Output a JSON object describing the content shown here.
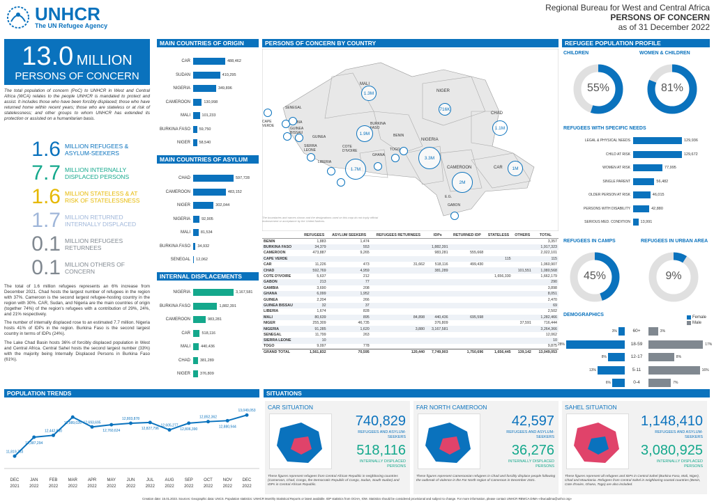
{
  "header": {
    "logo_text": "UNHCR",
    "logo_sub": "The UN Refugee Agency",
    "region": "Regional Bureau for West and Central Africa",
    "title": "PERSONS OF CONCERN",
    "date": "as of 31 December 2022"
  },
  "hero": {
    "number": "13.0",
    "unit": "MILLION",
    "label": "PERSONS OF CONCERN",
    "desc": "The total population of concern (PoC) to UNHCR in West and Central Africa (WCA) relates to the people UNHCR is mandated to protect and assist. It includes those who have been forcibly displaced; those who have returned home within recent years; those who are stateless or at risk of statelessness; and other groups to whom UNHCR has extended its protection or assisted on a humanitarian basis."
  },
  "stats": [
    {
      "n": "1.6",
      "t": "MILLION REFUGEES & ASYLUM-SEEKERS",
      "cls": "blue"
    },
    {
      "n": "7.7",
      "t": "MILLION INTERNALLY DISPLACED PERSONS",
      "cls": "teal"
    },
    {
      "n": "1.6",
      "t": "MILLION STATELESS & AT RISK OF STATELESSNESS",
      "cls": "yel"
    },
    {
      "n": "1.7",
      "t": "MILLION RETURNED INTERNALLY DISPLACED",
      "cls": "lb"
    },
    {
      "n": "0.1",
      "t": "MILLION REFUGEES RETURNEES",
      "cls": "grey"
    },
    {
      "n": "0.1",
      "t": "MILLION OTHERS OF CONCERN",
      "cls": "grey"
    }
  ],
  "paras": [
    "The total of 1.6 million refugees represents an 6% increase from December 2021. Chad hosts the largest number of refugees in the region with 37%. Cameroon is the second largest refugee-hosting country in the region with 30%. CAR, Sudan, and Nigeria are the main countries of origin (together 74%) of the region's refugees with a contribution of 29%, 24%, and 21% respectively.",
    "The number of internally displaced rose to an estimated 7.7 million. Nigeria hosts 41% of IDPs in the region. Burkina Faso is the second largest country in terms of IDPs (24%).",
    "The Lake Chad Basin hosts 36% of forcibly displaced population in West and Central Africa. Central Sahel hosts the second largest number (33%) with the majority being Internally Displaced Persons in Burkina Faso (61%)."
  ],
  "origin": {
    "title": "MAIN COUNTRIES OF ORIGIN",
    "rows": [
      {
        "l": "CAR",
        "v": 488462,
        "t": "488,462"
      },
      {
        "l": "SUDAN",
        "v": 410295,
        "t": "410,295"
      },
      {
        "l": "NIGERIA",
        "v": 349896,
        "t": "349,896"
      },
      {
        "l": "CAMEROON",
        "v": 130998,
        "t": "130,998"
      },
      {
        "l": "MALI",
        "v": 101233,
        "t": "101,233"
      },
      {
        "l": "BURKINA FASO",
        "v": 59750,
        "t": "59,750"
      },
      {
        "l": "NIGER",
        "v": 58540,
        "t": "58,540"
      }
    ]
  },
  "asylum": {
    "title": "MAIN COUNTRIES OF ASYLUM",
    "rows": [
      {
        "l": "CHAD",
        "v": 597728,
        "t": "597,728"
      },
      {
        "l": "CAMEROON",
        "v": 483152,
        "t": "483,152"
      },
      {
        "l": "NIGER",
        "v": 302044,
        "t": "302,044"
      },
      {
        "l": "NIGERIA",
        "v": 92905,
        "t": "92,905"
      },
      {
        "l": "MALI",
        "v": 81534,
        "t": "81,534"
      },
      {
        "l": "BURKINA FASO",
        "v": 34932,
        "t": "34,932"
      },
      {
        "l": "SENEGAL",
        "v": 12062,
        "t": "12,062"
      }
    ]
  },
  "idp": {
    "title": "INTERNAL DISPLACEMENTS",
    "rows": [
      {
        "l": "NIGERIA",
        "v": 3167581,
        "t": "3,167,581"
      },
      {
        "l": "BURKINA FASO",
        "v": 1882391,
        "t": "1,882,391"
      },
      {
        "l": "CAMEROON",
        "v": 983281,
        "t": "983,281"
      },
      {
        "l": "CAR",
        "v": 518116,
        "t": "518,116"
      },
      {
        "l": "MALI",
        "v": 440436,
        "t": "440,436"
      },
      {
        "l": "CHAD",
        "v": 381289,
        "t": "381,289"
      },
      {
        "l": "NIGER",
        "v": 376809,
        "t": "376,809"
      }
    ]
  },
  "map": {
    "title": "PERSONS OF CONCERN BY COUNTRY",
    "disclaimer": "The boundaries and names shown and the designations used on this map do not imply official endorsement or acceptance by the United Nations.",
    "countries": [
      "MALI",
      "NIGER",
      "CHAD",
      "SENEGAL",
      "GAMBIA",
      "GUINEA BISSAU",
      "GUINEA",
      "SIERRA LEONE",
      "LIBERIA",
      "COTE D'IVOIRE",
      "BURKINA FASO",
      "GHANA",
      "TOGO",
      "BENIN",
      "NIGERIA",
      "CAMEROON",
      "CAR",
      "CAPE VERDE",
      "E.G.",
      "GABON"
    ],
    "bubbles": [
      "1.3M",
      "716K",
      "1.1M",
      "1.9M",
      "3.3M",
      "1.7M",
      "2M",
      "1M"
    ]
  },
  "table": {
    "headers": [
      "",
      "REFUGEES",
      "ASYLUM SEEKERS",
      "REFUGEES RETURNEES",
      "IDPs",
      "RETURNED IDP",
      "STATELESS",
      "OTHERS",
      "TOTAL"
    ],
    "rows": [
      [
        "BENIN",
        "1,883",
        "1,474",
        "",
        "",
        "",
        "",
        "",
        "3,357"
      ],
      [
        "BURKINA FASO",
        "34,379",
        "553",
        "",
        "1,882,391",
        "",
        "",
        "",
        "1,917,323"
      ],
      [
        "CAMEROON",
        "473,887",
        "9,265",
        "",
        "983,281",
        "555,668",
        "",
        "",
        "2,022,101"
      ],
      [
        "CAPE VERDE",
        "",
        "",
        "",
        "",
        "",
        "115",
        "",
        "115"
      ],
      [
        "CAR",
        "11,226",
        "473",
        "31,662",
        "518,116",
        "499,430",
        "",
        "",
        "1,060,907"
      ],
      [
        "CHAD",
        "592,769",
        "4,959",
        "",
        "381,289",
        "",
        "",
        "101,551",
        "1,080,568"
      ],
      [
        "COTE D'IVOIRE",
        "5,637",
        "212",
        "",
        "",
        "",
        "1,656,330",
        "",
        "1,662,179"
      ],
      [
        "GABON",
        "213",
        "77",
        "",
        "",
        "",
        "",
        "",
        "290"
      ],
      [
        "GAMBIA",
        "3,690",
        "208",
        "",
        "",
        "",
        "",
        "",
        "3,898"
      ],
      [
        "GHANA",
        "6,099",
        "1,952",
        "",
        "",
        "",
        "",
        "",
        "8,051"
      ],
      [
        "GUINEA",
        "2,204",
        "266",
        "",
        "",
        "",
        "",
        "",
        "2,470"
      ],
      [
        "GUINEA BISSAU",
        "32",
        "37",
        "",
        "",
        "",
        "",
        "",
        "69"
      ],
      [
        "LIBERIA",
        "1,674",
        "828",
        "",
        "",
        "",
        "",
        "",
        "2,502"
      ],
      [
        "MALI",
        "80,639",
        "895",
        "84,898",
        "440,436",
        "695,598",
        "",
        "",
        "1,282,466"
      ],
      [
        "NIGER",
        "255,309",
        "46,735",
        "",
        "376,809",
        "",
        "",
        "37,591",
        "716,444"
      ],
      [
        "NIGERIA",
        "91,285",
        "1,620",
        "3,880",
        "3,167,581",
        "",
        "",
        "",
        "3,264,366"
      ],
      [
        "SENEGAL",
        "11,799",
        "263",
        "",
        "",
        "",
        "",
        "",
        "12,062"
      ],
      [
        "SIERRA LEONE",
        "10",
        "",
        "",
        "",
        "",
        "",
        "",
        "10"
      ],
      [
        "TOGO",
        "9,097",
        "778",
        "",
        "",
        "",
        "",
        "",
        "9,875"
      ]
    ],
    "total": [
      "GRAND TOTAL",
      "1,561,832",
      "70,595",
      "120,440",
      "7,749,903",
      "1,750,696",
      "1,656,445",
      "139,142",
      "13,049,053"
    ]
  },
  "profile": {
    "title": "REFUGEE POPULATION PROFILE",
    "children_label": "CHILDREN",
    "children_value": "55%",
    "children_pct": 55,
    "wc_label": "WOMEN & CHILDREN",
    "wc_value": "81%",
    "wc_pct": 81
  },
  "needs": {
    "title": "REFUGEES WITH SPECIFIC NEEDS",
    "rows": [
      {
        "l": "LEGAL & PHYSICAL NEEDS",
        "v": 129936,
        "t": "129,936"
      },
      {
        "l": "CHILD AT RISK",
        "v": 129672,
        "t": "129,672"
      },
      {
        "l": "WOMEN AT RISK",
        "v": 77995,
        "t": "77,995"
      },
      {
        "l": "SINGLE PARENT",
        "v": 56482,
        "t": "56,482"
      },
      {
        "l": "OLDER PERSON AT RISK",
        "v": 46015,
        "t": "46,015"
      },
      {
        "l": "PERSONS WITH DISABILITY",
        "v": 42880,
        "t": "42,880"
      },
      {
        "l": "SERIOUS MED. CONDITION",
        "v": 13991,
        "t": "13,991"
      }
    ]
  },
  "camps": {
    "label": "REFUGEES IN CAMPS",
    "value": "45%",
    "pct": 45
  },
  "urban": {
    "label": "REFUGEES IN URBAN AREA",
    "value": "9%",
    "pct": 9
  },
  "demo": {
    "title": "DEMOGRAPHICS",
    "female": "Female",
    "male": "Male",
    "rows": [
      {
        "age": "60+",
        "f": 3,
        "m": 3,
        "ft": "3%",
        "mt": "3%"
      },
      {
        "age": "18-59",
        "f": 28,
        "m": 17,
        "ft": "28%",
        "mt": "17%"
      },
      {
        "age": "12-17",
        "f": 8,
        "m": 8,
        "ft": "8%",
        "mt": "8%"
      },
      {
        "age": "5-11",
        "f": 13,
        "m": 16,
        "ft": "13%",
        "mt": "16%"
      },
      {
        "age": "0-4",
        "f": 6,
        "m": 7,
        "ft": "6%",
        "mt": "7%"
      }
    ]
  },
  "chart_data": {
    "type": "line",
    "title": "POPULATION TRENDS",
    "categories": [
      "DEC 2021",
      "JAN 2022",
      "FEB 2022",
      "MAR 2022",
      "APR 2022",
      "MAY 2022",
      "JUN 2022",
      "JUL 2022",
      "AUG 2022",
      "SEP 2022",
      "OCT 2022",
      "NOV 2022",
      "DEC 2022"
    ],
    "values": [
      11819753,
      12387294,
      12442860,
      12989026,
      12693695,
      12760624,
      12803878,
      12827796,
      12605277,
      12806390,
      12852362,
      12880944,
      13049053
    ],
    "labels": [
      "11,819,753",
      "12,387,294",
      "12,442,860",
      "12,989,026",
      "12,693,695",
      "12,760,624",
      "12,803,878",
      "12,827,796",
      "12,605,277",
      "12,806,390",
      "12,852,362",
      "12,880,944",
      "13,049,053"
    ],
    "ylim": [
      11700000,
      13200000
    ]
  },
  "situations": {
    "title": "SITUATIONS",
    "cards": [
      {
        "title": "CAR SITUATION",
        "n1": "740,829",
        "l1": "REFUGEES AND ASYLUM-SEEKERS",
        "n2": "518,116",
        "l2": "INTERNALLY DISPLACED PERSONS",
        "note": "These figures represent refugees from Central African Republic in neighboring countries (Cameroon, Chad, Congo, the Democratic Republic of Congo, Sudan, South Sudan) and IDPs in Central African Republic."
      },
      {
        "title": "FAR NORTH CAMEROON",
        "n1": "42,597",
        "l1": "REFUGEES AND ASYLUM-SEEKERS",
        "n2": "36,276",
        "l2": "INTERNALLY DISPLACED PERSONS",
        "note": "These figures represent Cameroonian refugees in Chad and forcibly displace people following the outbreak of violence in the Far North region of Cameroon in December 2021."
      },
      {
        "title": "SAHEL SITUATION",
        "n1": "1,148,410",
        "l1": "REFUGEES AND ASYLUM-SEEKERS",
        "n2": "3,080,925",
        "l2": "INTERNALLY DISPLACED PERSONS",
        "note": "These figures represent all refugees and IDPs in Central Sahel (Burkina Faso, Mali, Niger), Chad and Mauritania. Refugees from Central Sahel in neighboring coastal countries (Benin, Cote d'Ivoire, Ghana, Togo) are also included."
      }
    ]
  },
  "footer": "Creation date: 15.01.2023. Sources: Geographic data: UNCS. Population statistics: UNHCR Monthly Statistical Reports or latest available. IDP statistics from OCHA, IOM. Statistics should be considered provisional and subject to change. For more information, please contact UNHCR RBWCA DIMA «rbwcadima@unhcr.org»",
  "colors": {
    "primary": "#0a72bd",
    "teal": "#14a88c",
    "yellow": "#e6b800",
    "grey": "#808890"
  }
}
